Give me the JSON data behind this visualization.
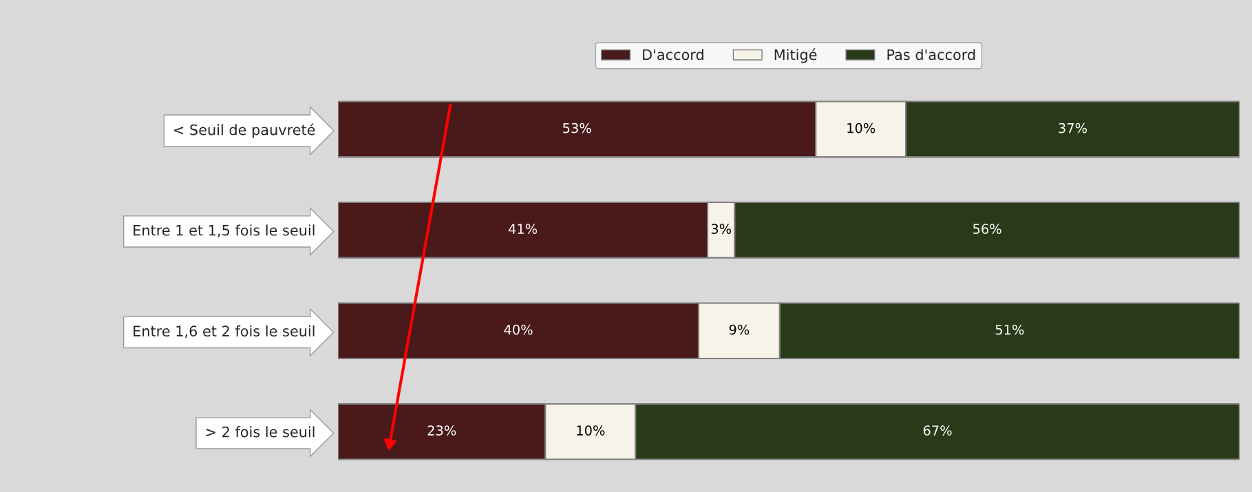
{
  "chart_data": {
    "type": "bar",
    "orientation": "horizontal",
    "stacked": true,
    "categories": [
      "< Seuil de pauvreté",
      "Entre 1 et 1,5 fois le seuil",
      "Entre 1,6 et 2 fois le seuil",
      "> 2 fois le seuil"
    ],
    "series": [
      {
        "name": "D'accord",
        "color": "#4a1a1a",
        "values": [
          53,
          41,
          40,
          23
        ],
        "value_labels": [
          "53%",
          "41%",
          "40%",
          "23%"
        ]
      },
      {
        "name": "Mitigé",
        "color": "#f7f3e8",
        "values": [
          10,
          3,
          9,
          10
        ],
        "value_labels": [
          "10%",
          "3%",
          "9%",
          "10%"
        ]
      },
      {
        "name": "Pas d'accord",
        "color": "#283a17",
        "values": [
          37,
          56,
          51,
          67
        ],
        "value_labels": [
          "37%",
          "56%",
          "51%",
          "67%"
        ]
      }
    ],
    "legend": "top",
    "grid": false,
    "tick_labels": "y"
  }
}
